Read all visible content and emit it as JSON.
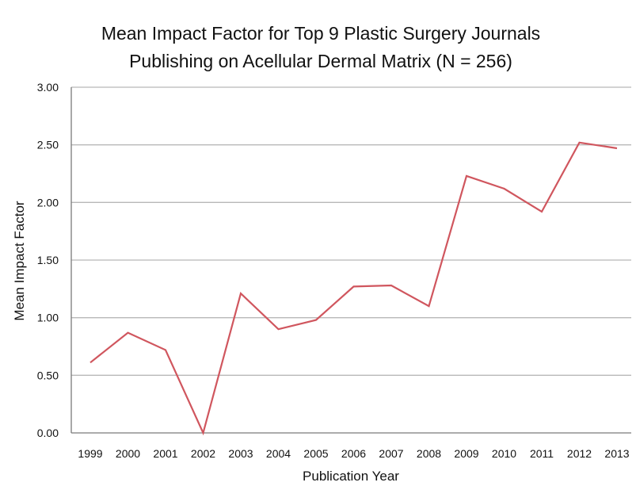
{
  "chart_data": {
    "type": "line",
    "title_lines": [
      "Mean Impact Factor for Top 9 Plastic Surgery Journals",
      "Publishing on Acellular Dermal Matrix (N = 256)"
    ],
    "xlabel": "Publication Year",
    "ylabel": "Mean Impact Factor",
    "categories": [
      "1999",
      "2000",
      "2001",
      "2002",
      "2003",
      "2004",
      "2005",
      "2006",
      "2007",
      "2008",
      "2009",
      "2010",
      "2011",
      "2012",
      "2013"
    ],
    "values": [
      0.61,
      0.87,
      0.72,
      0.0,
      1.21,
      0.9,
      0.98,
      1.27,
      1.28,
      1.1,
      2.23,
      2.12,
      1.92,
      2.52,
      2.47
    ],
    "ylim": [
      0,
      3
    ],
    "yticks": [
      "0.00",
      "0.50",
      "1.00",
      "1.50",
      "2.00",
      "2.50",
      "3.00"
    ],
    "grid": true,
    "line_color": "#d0565e",
    "grid_color": "#b8b8b8",
    "axis_color": "#7a7a7a"
  }
}
